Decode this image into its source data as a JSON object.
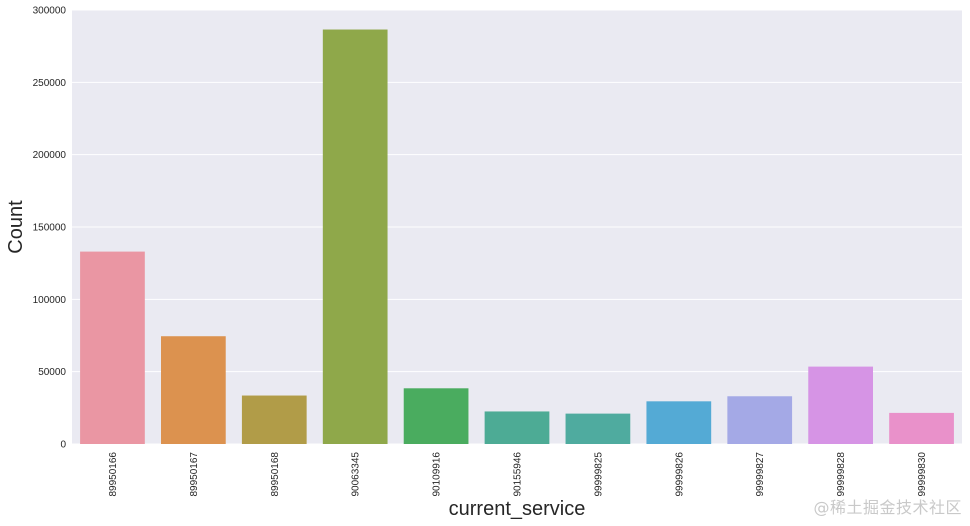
{
  "chart_data": {
    "type": "bar",
    "categories": [
      "89950166",
      "89950167",
      "89950168",
      "90063345",
      "90109916",
      "90155946",
      "99999825",
      "99999826",
      "99999827",
      "99999828",
      "99999830"
    ],
    "values": [
      133000,
      74500,
      33500,
      286500,
      38500,
      22500,
      21000,
      29500,
      33000,
      53500,
      21500
    ],
    "colors": [
      "#ea96a3",
      "#dc924f",
      "#b19c48",
      "#8fa84a",
      "#4aac5f",
      "#4dab95",
      "#4fab9f",
      "#54aad5",
      "#a4a9e6",
      "#d694e5",
      "#e991ca"
    ],
    "xlabel": "current_service",
    "ylabel": "Count",
    "ylim": [
      0,
      300000
    ],
    "yticks": [
      0,
      50000,
      100000,
      150000,
      200000,
      250000,
      300000
    ],
    "ytick_labels": [
      "0",
      "50000",
      "100000",
      "150000",
      "200000",
      "250000",
      "300000"
    ],
    "background": "#eaeaf2",
    "grid": true,
    "grid_axis": "y",
    "legend": "none"
  },
  "watermark": "@稀土掘金技术社区"
}
